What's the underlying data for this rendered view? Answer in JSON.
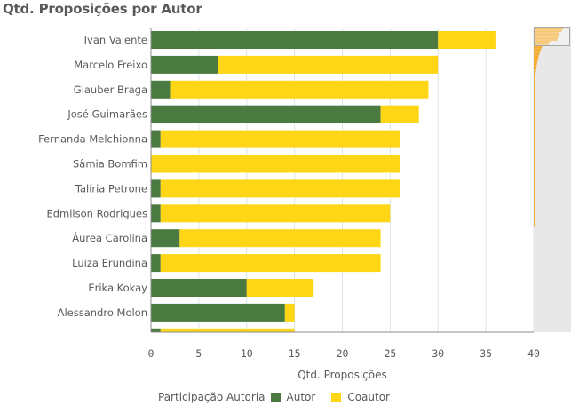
{
  "title": "Qtd. Proposições por Autor",
  "legend": {
    "title": "Participação Autoria",
    "items": [
      {
        "label": "Autor",
        "color": "#4a7a3f"
      },
      {
        "label": "Coautor",
        "color": "#ffd615"
      }
    ]
  },
  "chart_data": {
    "type": "bar",
    "orientation": "horizontal",
    "stacked": true,
    "title": "Qtd. Proposições por Autor",
    "xlabel": "Qtd. Proposições",
    "ylabel": "",
    "xlim": [
      0,
      40
    ],
    "xticks": [
      0,
      5,
      10,
      15,
      20,
      25,
      30,
      35,
      40
    ],
    "grid": true,
    "legend_position": "bottom",
    "categories": [
      "Ivan Valente",
      "Marcelo Freixo",
      "Glauber Braga",
      "José Guimarães",
      "Fernanda Melchionna",
      "Sâmia Bomfim",
      "Talíria Petrone",
      "Edmilson Rodrigues",
      "Áurea Carolina",
      "Luiza Erundina",
      "Erika Kokay",
      "Alessandro Molon",
      ""
    ],
    "series": [
      {
        "name": "Autor",
        "color": "#4a7a3f",
        "values": [
          30,
          7,
          2,
          24,
          1,
          0,
          1,
          1,
          3,
          1,
          10,
          14,
          1
        ]
      },
      {
        "name": "Coautor",
        "color": "#ffd615",
        "values": [
          6,
          23,
          27,
          4,
          25,
          26,
          25,
          24,
          21,
          23,
          7,
          1,
          14
        ]
      }
    ]
  }
}
